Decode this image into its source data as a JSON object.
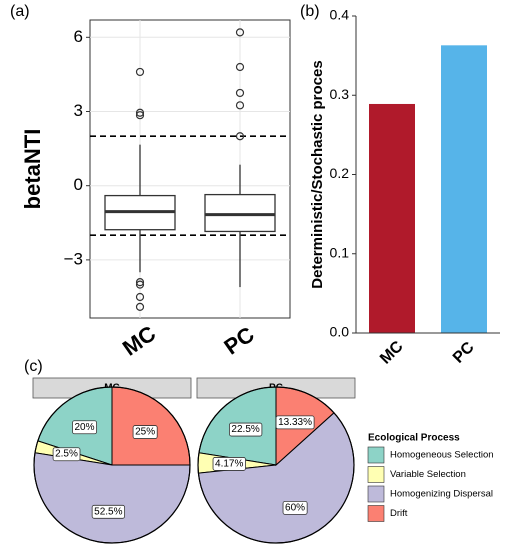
{
  "chart_data": [
    {
      "type": "box",
      "panel": "(a)",
      "ylabel": "betaNTI",
      "categories": [
        "MC",
        "PC"
      ],
      "boxes": [
        {
          "whisker_low": -3.5,
          "q1": -1.78,
          "median": -1.05,
          "q3": -0.4,
          "whisker_high": 1.66,
          "outliers": [
            4.6,
            2.95,
            2.85,
            -3.9,
            -4.0,
            -4.5,
            -4.9
          ]
        },
        {
          "whisker_low": -4.1,
          "q1": -1.85,
          "median": -1.17,
          "q3": -0.36,
          "whisker_high": 0.85,
          "outliers": [
            6.2,
            4.8,
            3.75,
            3.25,
            2.0
          ]
        }
      ],
      "hlines": [
        2,
        -2
      ],
      "ylim": [
        -5.35,
        6.7
      ],
      "yticks": [
        {
          "value": -3,
          "label": "−3"
        },
        0,
        3,
        6
      ],
      "grid": true
    },
    {
      "type": "bar",
      "panel": "(b)",
      "ylabel": "Deterministic/Stochastic proces",
      "categories": [
        "MC",
        "PC"
      ],
      "values": [
        0.289,
        0.363
      ],
      "colors": [
        "#b01a2b",
        "#56b4e9"
      ],
      "ylim": [
        0,
        0.4
      ],
      "yticks": [
        {
          "value": 0,
          "label": "0.0"
        },
        0.1,
        0.2,
        0.3,
        0.4
      ]
    },
    {
      "type": "pie",
      "panel": "(c)",
      "legend_title": "Ecological Process",
      "categories": [
        "Homogeneous Selection",
        "Variable Selection",
        "Homogenizing Dispersal",
        "Drift"
      ],
      "colors": [
        "#8dd3c7",
        "#ffffb3",
        "#bebada",
        "#fb8072"
      ],
      "facets": [
        {
          "title": "MC",
          "values": [
            20,
            2.5,
            52.5,
            25
          ],
          "value_labels": [
            "20%",
            "2.5%",
            "52.5%",
            "25%"
          ]
        },
        {
          "title": "PC",
          "values": [
            22.5,
            4.17,
            60,
            13.33
          ],
          "value_labels": [
            "22.5%",
            "4.17%",
            "60%",
            "13.33%"
          ]
        }
      ]
    }
  ]
}
